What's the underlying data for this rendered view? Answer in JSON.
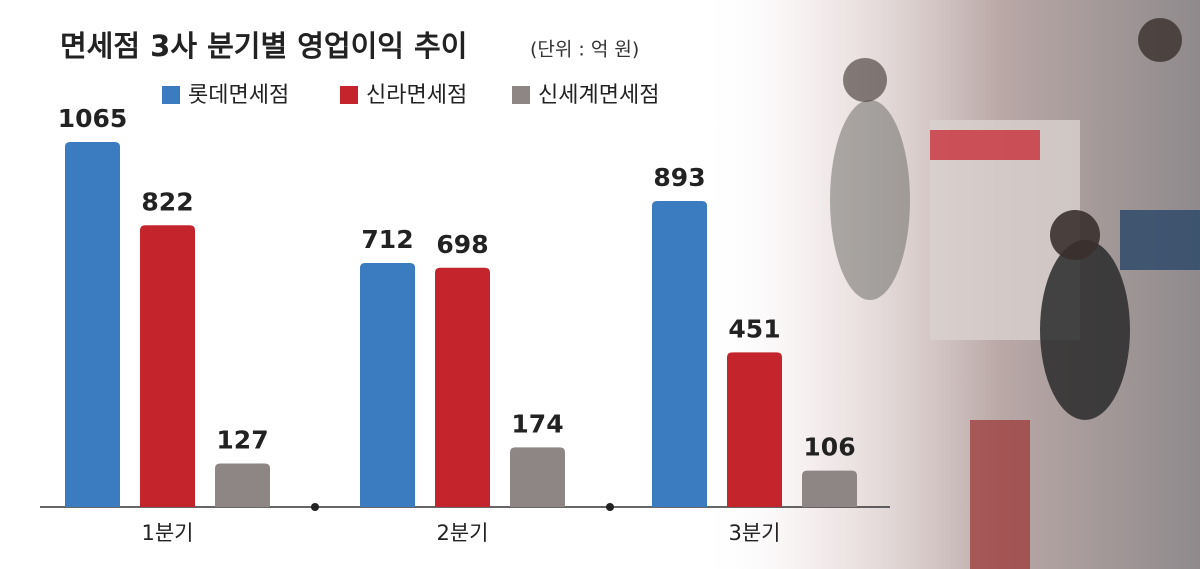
{
  "chart_data": {
    "type": "bar",
    "title": "면세점 3사 분기별 영업이익 추이",
    "subtitle": "(단위 : 억 원)",
    "categories": [
      "1분기",
      "2분기",
      "3분기"
    ],
    "series": [
      {
        "name": "롯데면세점",
        "color": "#3b7bbf",
        "values": [
          1065,
          712,
          893
        ]
      },
      {
        "name": "신라면세점",
        "color": "#c4242c",
        "values": [
          822,
          698,
          451
        ]
      },
      {
        "name": "신세계면세점",
        "color": "#8e8685",
        "values": [
          127,
          174,
          106
        ]
      }
    ]
  }
}
